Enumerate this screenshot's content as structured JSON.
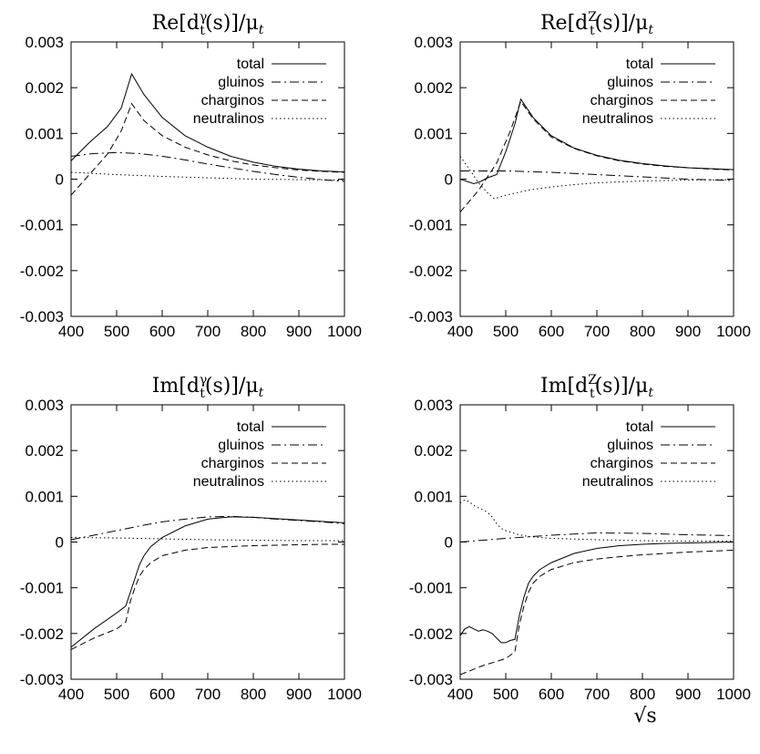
{
  "figure": {
    "xlabel": "√s"
  },
  "chart_data": [
    {
      "type": "line",
      "title": "Re[d_t^γ(s)]/μ_t",
      "title_parts": {
        "prefix": "Re[d",
        "sub": "t",
        "sup": "γ",
        "suffix": "(s)]/μ",
        "suffix_sub": "t"
      },
      "xlim": [
        400,
        1000
      ],
      "ylim": [
        -0.003,
        0.003
      ],
      "xticks": [
        "400",
        "500",
        "600",
        "700",
        "800",
        "900",
        "1000"
      ],
      "yticks": [
        "0.003",
        "0.002",
        "0.001",
        "0",
        "-0.001",
        "-0.002",
        "-0.003"
      ],
      "legend_position": "top-right",
      "series": [
        {
          "name": "total",
          "style": "solid",
          "x": [
            400,
            440,
            480,
            510,
            533,
            560,
            600,
            650,
            700,
            750,
            800,
            850,
            900,
            950,
            1000
          ],
          "y": [
            0.0004,
            0.0008,
            0.00115,
            0.00155,
            0.0023,
            0.00185,
            0.00135,
            0.00095,
            0.0007,
            0.0005,
            0.00037,
            0.00028,
            0.00022,
            0.00018,
            0.00016
          ]
        },
        {
          "name": "gluinos",
          "style": "dashdot",
          "x": [
            400,
            450,
            500,
            550,
            600,
            650,
            700,
            750,
            800,
            850,
            900,
            950,
            1000
          ],
          "y": [
            0.0005,
            0.00056,
            0.00058,
            0.00056,
            0.0005,
            0.00042,
            0.00033,
            0.00025,
            0.00017,
            0.0001,
            4e-05,
            -1e-05,
            -5e-05
          ]
        },
        {
          "name": "charginos",
          "style": "dashed",
          "x": [
            400,
            440,
            480,
            510,
            533,
            560,
            600,
            650,
            700,
            750,
            800,
            850,
            900,
            950,
            1000
          ],
          "y": [
            -0.00035,
            0.0001,
            0.00055,
            0.00105,
            0.00165,
            0.00128,
            0.00095,
            0.0007,
            0.00053,
            0.0004,
            0.00031,
            0.00025,
            0.0002,
            0.00017,
            0.00015
          ]
        },
        {
          "name": "neutralinos",
          "style": "dotted",
          "x": [
            400,
            500,
            600,
            700,
            800,
            900,
            1000
          ],
          "y": [
            0.00015,
            0.0001,
            6e-05,
            3e-05,
            0.0,
            -1e-05,
            -2e-05
          ]
        }
      ]
    },
    {
      "type": "line",
      "title": "Re[d_t^Z(s)]/μ_t",
      "title_parts": {
        "prefix": "Re[d",
        "sub": "t",
        "sup": "Z",
        "suffix": "(s)]/μ",
        "suffix_sub": "t"
      },
      "xlim": [
        400,
        1000
      ],
      "ylim": [
        -0.003,
        0.003
      ],
      "xticks": [
        "400",
        "500",
        "600",
        "700",
        "800",
        "900",
        "1000"
      ],
      "yticks": [
        "0.003",
        "0.002",
        "0.001",
        "0",
        "-0.001",
        "-0.002",
        "-0.003"
      ],
      "legend_position": "top-right",
      "series": [
        {
          "name": "total",
          "style": "solid",
          "x": [
            400,
            415,
            430,
            445,
            460,
            480,
            500,
            520,
            533,
            560,
            600,
            650,
            700,
            750,
            800,
            850,
            900,
            950,
            1000
          ],
          "y": [
            0.0,
            -5e-05,
            -0.0001,
            -5e-05,
            3e-05,
            0.0001,
            0.0006,
            0.0012,
            0.00175,
            0.00135,
            0.00095,
            0.00068,
            0.00052,
            0.00041,
            0.00034,
            0.00029,
            0.00025,
            0.00023,
            0.00021
          ]
        },
        {
          "name": "gluinos",
          "style": "dashdot",
          "x": [
            400,
            500,
            600,
            700,
            800,
            900,
            1000
          ],
          "y": [
            0.00018,
            0.00018,
            0.00015,
            0.0001,
            5e-05,
            0.0,
            -3e-05
          ]
        },
        {
          "name": "charginos",
          "style": "dashed",
          "x": [
            400,
            440,
            480,
            510,
            533,
            560,
            600,
            650,
            700,
            750,
            800,
            850,
            900,
            950,
            1000
          ],
          "y": [
            -0.00072,
            -0.00025,
            0.00035,
            0.00105,
            0.0017,
            0.00132,
            0.00092,
            0.00067,
            0.00051,
            0.0004,
            0.00033,
            0.00028,
            0.00025,
            0.00022,
            0.0002
          ]
        },
        {
          "name": "neutralinos",
          "style": "dotted",
          "x": [
            400,
            420,
            440,
            460,
            475,
            500,
            550,
            600,
            650,
            700,
            800,
            900,
            1000
          ],
          "y": [
            0.0005,
            0.00022,
            -8e-05,
            -0.0003,
            -0.00043,
            -0.00035,
            -0.00024,
            -0.00017,
            -0.00012,
            -8e-05,
            -4e-05,
            -2e-05,
            -1e-05
          ]
        }
      ]
    },
    {
      "type": "line",
      "title": "Im[d_t^γ(s)]/μ_t",
      "title_parts": {
        "prefix": "Im[d",
        "sub": "t",
        "sup": "γ",
        "suffix": "(s)]/μ",
        "suffix_sub": "t"
      },
      "xlim": [
        400,
        1000
      ],
      "ylim": [
        -0.003,
        0.003
      ],
      "xticks": [
        "400",
        "500",
        "600",
        "700",
        "800",
        "900",
        "1000"
      ],
      "yticks": [
        "0.003",
        "0.002",
        "0.001",
        "0",
        "-0.001",
        "-0.002",
        "-0.003"
      ],
      "legend_position": "top-right",
      "series": [
        {
          "name": "total",
          "style": "solid",
          "x": [
            400,
            450,
            500,
            520,
            530,
            540,
            550,
            560,
            575,
            600,
            650,
            700,
            750,
            800,
            850,
            900,
            950,
            1000
          ],
          "y": [
            -0.0023,
            -0.0019,
            -0.00155,
            -0.0014,
            -0.0011,
            -0.0008,
            -0.0005,
            -0.0003,
            -0.0001,
            0.0001,
            0.00035,
            0.0005,
            0.00055,
            0.00054,
            0.00051,
            0.00048,
            0.00045,
            0.00042
          ]
        },
        {
          "name": "gluinos",
          "style": "dashdot",
          "x": [
            400,
            450,
            500,
            550,
            600,
            650,
            700,
            750,
            800,
            850,
            900,
            950,
            1000
          ],
          "y": [
            5e-05,
            0.00015,
            0.00025,
            0.00035,
            0.00044,
            0.0005,
            0.00055,
            0.00056,
            0.00054,
            0.0005,
            0.00047,
            0.00044,
            0.0004
          ]
        },
        {
          "name": "charginos",
          "style": "dashed",
          "x": [
            400,
            450,
            500,
            520,
            530,
            540,
            550,
            560,
            575,
            600,
            650,
            700,
            750,
            800,
            850,
            900,
            950,
            1000
          ],
          "y": [
            -0.00235,
            -0.0021,
            -0.0019,
            -0.00175,
            -0.0013,
            -0.001,
            -0.00075,
            -0.0006,
            -0.00045,
            -0.0003,
            -0.00018,
            -0.00012,
            -0.0001,
            -8e-05,
            -7e-05,
            -6e-05,
            -5e-05,
            -5e-05
          ]
        },
        {
          "name": "neutralinos",
          "style": "dotted",
          "x": [
            400,
            500,
            600,
            700,
            800,
            900,
            1000
          ],
          "y": [
            0.0001,
            9e-05,
            7e-05,
            5e-05,
            4e-05,
            3e-05,
            3e-05
          ]
        }
      ]
    },
    {
      "type": "line",
      "title": "Im[d_t^Z(s)]/μ_t",
      "title_parts": {
        "prefix": "Im[d",
        "sub": "t",
        "sup": "Z",
        "suffix": "(s)]/μ",
        "suffix_sub": "t"
      },
      "xlim": [
        400,
        1000
      ],
      "ylim": [
        -0.003,
        0.003
      ],
      "xticks": [
        "400",
        "500",
        "600",
        "700",
        "800",
        "900",
        "1000"
      ],
      "yticks": [
        "0.003",
        "0.002",
        "0.001",
        "0",
        "-0.001",
        "-0.002",
        "-0.003"
      ],
      "legend_position": "top-right",
      "series": [
        {
          "name": "total",
          "style": "solid",
          "x": [
            400,
            410,
            420,
            430,
            440,
            450,
            460,
            470,
            480,
            490,
            500,
            510,
            520,
            530,
            540,
            550,
            560,
            575,
            600,
            650,
            700,
            750,
            800,
            850,
            900,
            950,
            1000
          ],
          "y": [
            -0.00205,
            -0.0019,
            -0.00185,
            -0.0019,
            -0.00195,
            -0.00192,
            -0.00195,
            -0.002,
            -0.0021,
            -0.0022,
            -0.0022,
            -0.00215,
            -0.00213,
            -0.0016,
            -0.0012,
            -0.0009,
            -0.00075,
            -0.0006,
            -0.00045,
            -0.00025,
            -0.00014,
            -8e-05,
            -5e-05,
            -3e-05,
            -2e-05,
            -1e-05,
            0.0
          ]
        },
        {
          "name": "gluinos",
          "style": "dashdot",
          "x": [
            400,
            500,
            600,
            700,
            800,
            900,
            1000
          ],
          "y": [
            0.0,
            8e-05,
            0.00015,
            0.0002,
            0.00019,
            0.00016,
            0.00014
          ]
        },
        {
          "name": "charginos",
          "style": "dashed",
          "x": [
            400,
            450,
            500,
            520,
            530,
            540,
            550,
            560,
            575,
            600,
            650,
            700,
            750,
            800,
            850,
            900,
            950,
            1000
          ],
          "y": [
            -0.0029,
            -0.0027,
            -0.00255,
            -0.0024,
            -0.0018,
            -0.0014,
            -0.0011,
            -0.0009,
            -0.00075,
            -0.0006,
            -0.00045,
            -0.00037,
            -0.00032,
            -0.00028,
            -0.00025,
            -0.00022,
            -0.0002,
            -0.00018
          ]
        },
        {
          "name": "neutralinos",
          "style": "dotted",
          "x": [
            400,
            410,
            420,
            430,
            440,
            450,
            460,
            470,
            480,
            490,
            500,
            525,
            550,
            600,
            700,
            800,
            900,
            1000
          ],
          "y": [
            0.00085,
            0.00092,
            0.00088,
            0.0008,
            0.00075,
            0.0007,
            0.00065,
            0.00055,
            0.0004,
            0.0003,
            0.00025,
            0.00017,
            0.00012,
            8e-05,
            5e-05,
            3e-05,
            2e-05,
            2e-05
          ]
        }
      ]
    }
  ]
}
